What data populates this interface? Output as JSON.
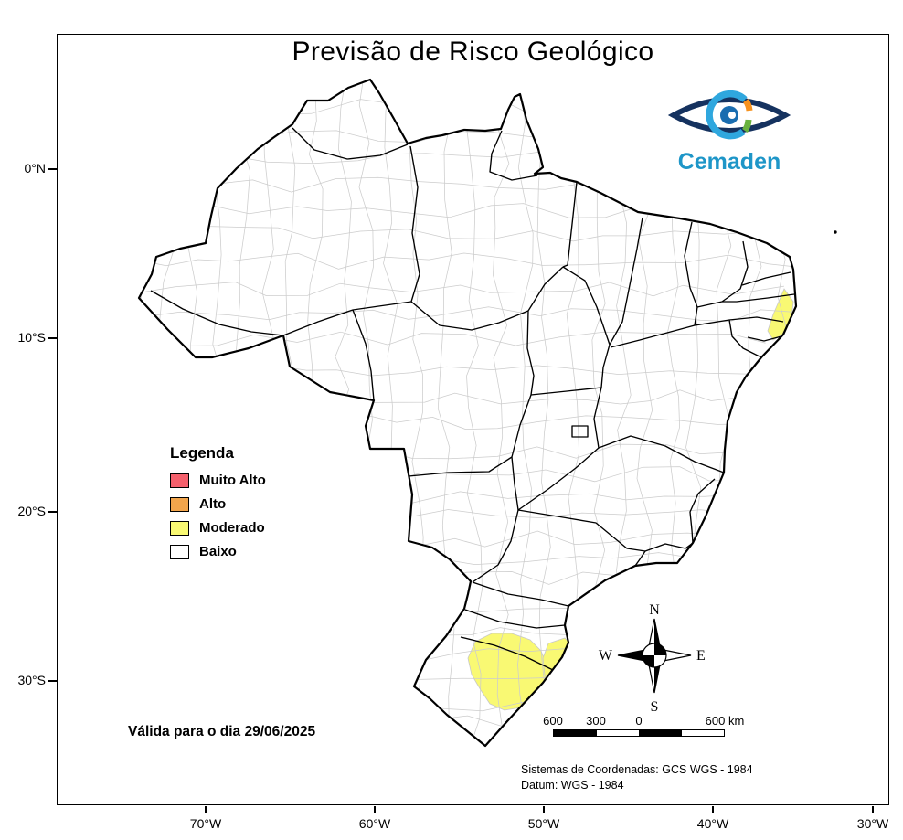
{
  "title": "Previsão de Risco Geológico",
  "logo": {
    "name": "Cemaden",
    "color": "#1e96c8"
  },
  "legend": {
    "title": "Legenda",
    "items": [
      {
        "label": "Muito Alto",
        "color": "#f4606c"
      },
      {
        "label": "Alto",
        "color": "#f2a54c"
      },
      {
        "label": "Moderado",
        "color": "#f9f973"
      },
      {
        "label": "Baixo",
        "color": "#ffffff"
      }
    ]
  },
  "map": {
    "country_border_color": "#000000",
    "municipality_border_color": "#cccccc",
    "risk_regions": [
      {
        "level": "Moderado",
        "location": "south-interior"
      },
      {
        "level": "Moderado",
        "location": "south-coast"
      },
      {
        "level": "Moderado",
        "location": "northeast-coast"
      }
    ]
  },
  "axes": {
    "latitudes": [
      "0°N",
      "10°S",
      "20°S",
      "30°S"
    ],
    "longitudes": [
      "70°W",
      "60°W",
      "50°W",
      "40°W",
      "30°W"
    ]
  },
  "compass": {
    "north": "N",
    "south": "S",
    "east": "E",
    "west": "W"
  },
  "scalebar": {
    "labels": [
      "600",
      "300",
      "0",
      "600 km"
    ]
  },
  "validity": "Válida para o dia 29/06/2025",
  "credits": {
    "coordinate_system": "Sistemas de Coordenadas: GCS WGS - 1984",
    "datum": "Datum: WGS - 1984"
  }
}
